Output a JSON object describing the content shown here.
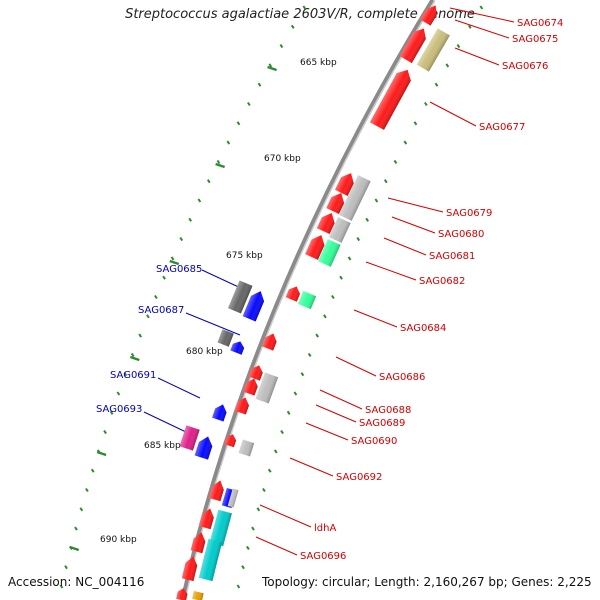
{
  "title": "Streptococcus agalactiae 2603V/R, complete genome",
  "accession": "Accession: NC_004116",
  "summary": "Topology: circular; Length: 2,160,267 bp; Genes: 2,225",
  "colors": {
    "backbone": "#8a8a8a",
    "tick": "#2e8b2e",
    "label_red": "#d40000",
    "label_blue": "#0000c0",
    "red": "#ff1a1a",
    "gray": "#bdbdbd",
    "darkgray": "#666666",
    "blue": "#0a0aff",
    "green": "#33ff99",
    "cyan": "#00cccc",
    "khaki": "#c8bd7a",
    "magenta": "#e0208a"
  },
  "scale_labels": [
    "665 kbp",
    "670 kbp",
    "675 kbp",
    "680 kbp",
    "685 kbp",
    "690 kbp"
  ],
  "genes_right": [
    "SAG0674",
    "SAG0675",
    "SAG0676",
    "SAG0677",
    "SAG0679",
    "SAG0680",
    "SAG0681",
    "SAG0682",
    "SAG0684",
    "SAG0686",
    "SAG0688",
    "SAG0689",
    "SAG0690",
    "SAG0692",
    "ldhA",
    "SAG0696"
  ],
  "genes_left": [
    "SAG0685",
    "SAG0687",
    "SAG0691",
    "SAG0693"
  ]
}
